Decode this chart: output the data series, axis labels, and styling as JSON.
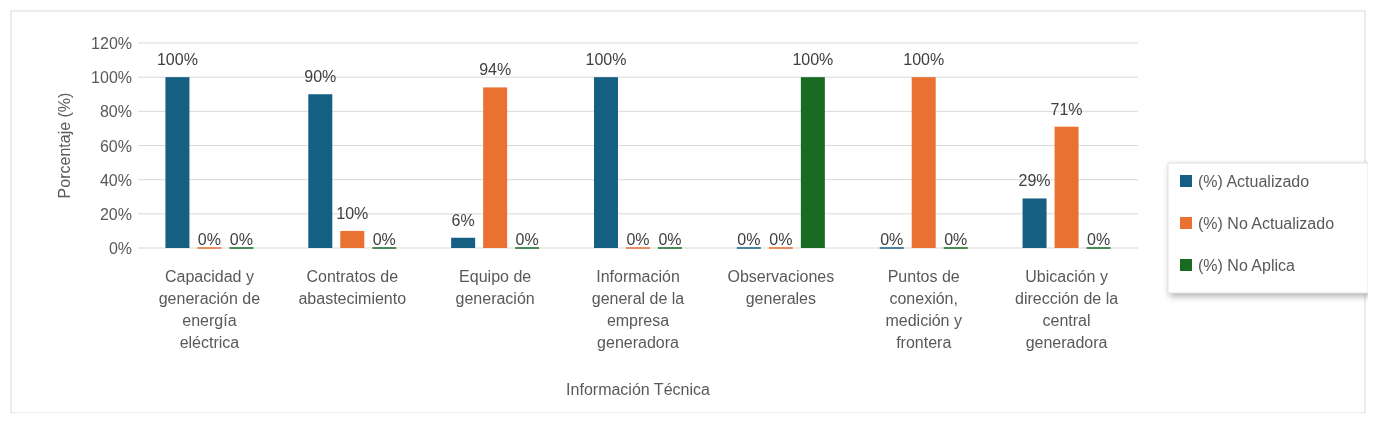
{
  "chart_data": {
    "type": "bar",
    "xlabel": "Información Técnica",
    "ylabel": "Porcentaje (%)",
    "categories": [
      "Capacidad y generación de energía eléctrica",
      "Contratos de abastecimiento",
      "Equipo de generación",
      "Información general de la empresa generadora",
      "Observaciones generales",
      "Puntos de conexión, medición y frontera",
      "Ubicación y dirección de la central generadora"
    ],
    "series": [
      {
        "name": "(%) Actualizado",
        "color": "#156082",
        "values": [
          100,
          90,
          6,
          100,
          0,
          0,
          29
        ],
        "value_labels": [
          "100%",
          "90%",
          "6%",
          "100%",
          "0%",
          "0%",
          "29%"
        ]
      },
      {
        "name": "(%) No Actualizado",
        "color": "#e97132",
        "values": [
          0,
          10,
          94,
          0,
          0,
          100,
          71
        ],
        "value_labels": [
          "0%",
          "10%",
          "94%",
          "0%",
          "0%",
          "100%",
          "71%"
        ]
      },
      {
        "name": "(%) No Aplica",
        "color": "#196b24",
        "values": [
          0,
          0,
          0,
          0,
          100,
          0,
          0
        ],
        "value_labels": [
          "0%",
          "0%",
          "0%",
          "0%",
          "100%",
          "0%",
          "0%"
        ]
      }
    ],
    "ylim": [
      0,
      120
    ],
    "yticks": [
      {
        "value": 0,
        "label": "0%"
      },
      {
        "value": 20,
        "label": "20%"
      },
      {
        "value": 40,
        "label": "40%"
      },
      {
        "value": 60,
        "label": "60%"
      },
      {
        "value": 80,
        "label": "80%"
      },
      {
        "value": 100,
        "label": "100%"
      },
      {
        "value": 120,
        "label": "120%"
      }
    ],
    "grid": "y",
    "legend": "right"
  }
}
